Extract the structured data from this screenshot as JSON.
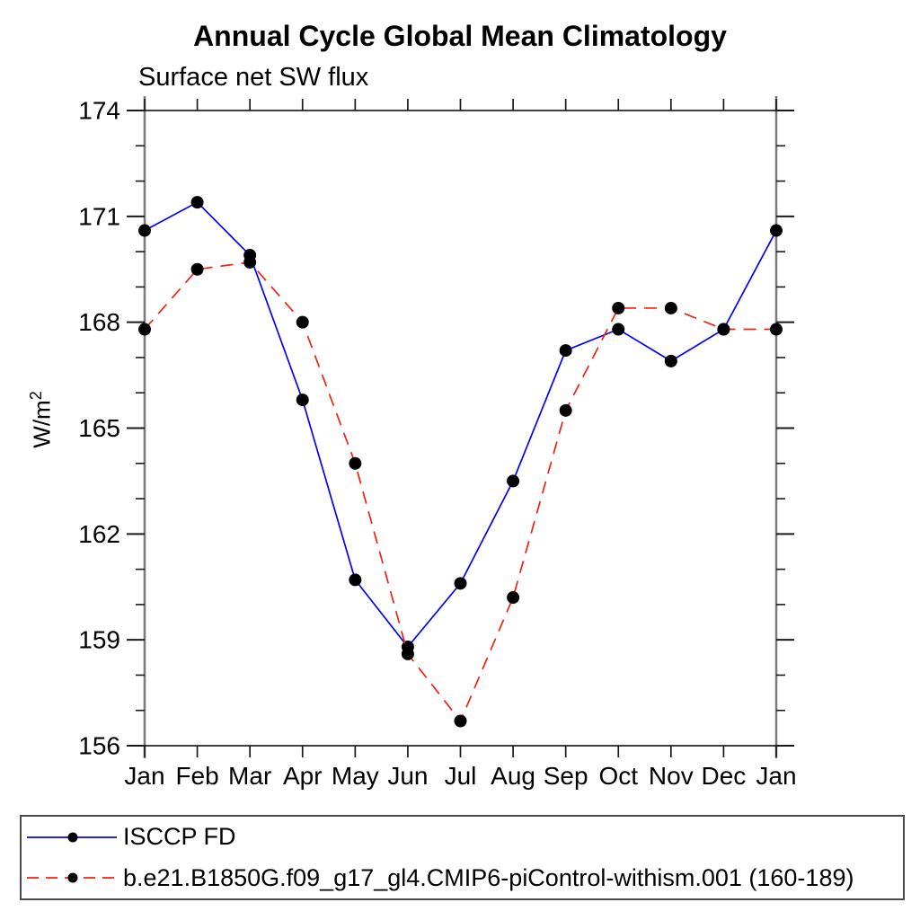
{
  "page": {
    "background": "#ffffff"
  },
  "chart_data": {
    "type": "line",
    "title": "Annual Cycle Global Mean Climatology",
    "subtitle": "Surface net SW flux",
    "ylabel": "W/m²",
    "ylabel_base": "W/m",
    "ylabel_exponent": "2",
    "categories": [
      "Jan",
      "Feb",
      "Mar",
      "Apr",
      "May",
      "Jun",
      "Jul",
      "Aug",
      "Sep",
      "Oct",
      "Nov",
      "Dec",
      "Jan"
    ],
    "ylim": [
      156,
      174
    ],
    "ytick_major": [
      156,
      159,
      162,
      165,
      168,
      171,
      174
    ],
    "ytick_minor_step": 1,
    "grid": false,
    "legend_position": "bottom-box",
    "axis_colors": {
      "vertical_spine": "#7d7d7d",
      "horizontal_line": "#000000",
      "tick": "#1a1a1a",
      "label": "#000000"
    },
    "series": [
      {
        "name": "ISCCP FD",
        "line_style": "solid",
        "line_color": "#0000ff",
        "marker": "circle",
        "marker_color": "#000000",
        "values": [
          170.6,
          171.4,
          169.9,
          165.8,
          160.7,
          158.8,
          160.6,
          163.5,
          167.2,
          167.8,
          166.9,
          167.8,
          170.6
        ]
      },
      {
        "name": "b.e21.B1850G.f09_g17_gl4.CMIP6-piControl-withism.001 (160-189)",
        "line_style": "dashed",
        "line_color": "#f5200c",
        "marker": "circle",
        "marker_color": "#000000",
        "values": [
          167.8,
          169.5,
          169.7,
          168.0,
          164.0,
          158.6,
          156.7,
          160.2,
          165.5,
          168.4,
          168.4,
          167.8,
          167.8
        ]
      }
    ]
  }
}
